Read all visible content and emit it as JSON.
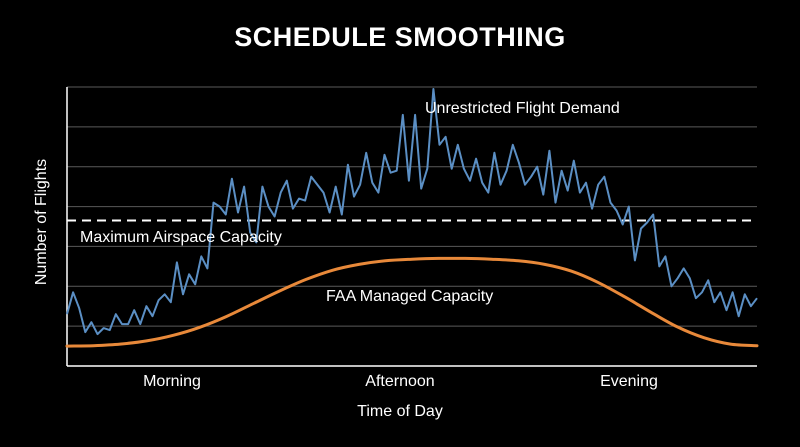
{
  "chart_data": {
    "type": "line",
    "title": "SCHEDULE SMOOTHING",
    "xlabel": "Time of Day",
    "ylabel": "Number of Flights",
    "x_tick_labels": [
      "Morning",
      "Afternoon",
      "Evening"
    ],
    "ylim": [
      0,
      7
    ],
    "y_axis_numbers_shown": false,
    "grid": "horizontal",
    "series": [
      {
        "name": "Unrestricted Flight Demand",
        "color": "#5b8fc4",
        "values": [
          1.3,
          1.85,
          1.45,
          0.85,
          1.1,
          0.8,
          0.95,
          0.9,
          1.3,
          1.05,
          1.05,
          1.4,
          1.05,
          1.5,
          1.25,
          1.65,
          1.8,
          1.6,
          2.6,
          1.8,
          2.3,
          2.05,
          2.75,
          2.45,
          4.1,
          4.0,
          3.8,
          4.7,
          3.85,
          4.5,
          3.35,
          3.1,
          4.5,
          4.0,
          3.75,
          4.35,
          4.65,
          3.95,
          4.2,
          4.15,
          4.75,
          4.55,
          4.35,
          3.85,
          4.5,
          3.8,
          5.05,
          4.25,
          4.55,
          5.35,
          4.6,
          4.35,
          5.3,
          4.85,
          4.9,
          6.3,
          4.65,
          6.3,
          4.45,
          4.95,
          6.95,
          5.55,
          5.75,
          4.95,
          5.55,
          4.95,
          4.65,
          5.2,
          4.6,
          4.35,
          5.35,
          4.55,
          4.9,
          5.55,
          5.1,
          4.55,
          4.75,
          5.0,
          4.3,
          5.4,
          4.1,
          4.9,
          4.4,
          5.15,
          4.35,
          4.6,
          3.95,
          4.55,
          4.75,
          4.1,
          3.9,
          3.55,
          4.0,
          2.65,
          3.45,
          3.6,
          3.8,
          2.5,
          2.75,
          2.0,
          2.2,
          2.45,
          2.2,
          1.7,
          1.85,
          2.15,
          1.6,
          1.85,
          1.4,
          1.85,
          1.25,
          1.8,
          1.5,
          1.7
        ]
      },
      {
        "name": "FAA Managed Capacity",
        "color": "#e8893a",
        "values": [
          0.5,
          0.51,
          0.55,
          0.63,
          0.77,
          0.97,
          1.24,
          1.56,
          1.88,
          2.17,
          2.4,
          2.55,
          2.64,
          2.68,
          2.7,
          2.7,
          2.68,
          2.64,
          2.55,
          2.38,
          2.1,
          1.74,
          1.35,
          0.98,
          0.71,
          0.55,
          0.51
        ]
      },
      {
        "name": "Maximum Airspace Capacity",
        "color": "#ffffff",
        "style": "dashed",
        "values": [
          3.65,
          3.65
        ]
      }
    ]
  }
}
